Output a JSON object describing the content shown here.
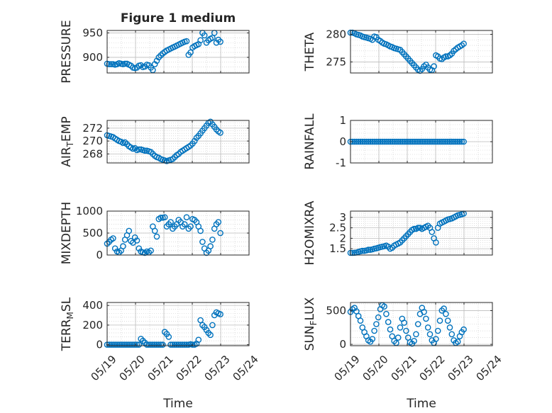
{
  "figure": {
    "title": "Figure 1 medium"
  },
  "chart_data": [
    {
      "type": "scatter",
      "ylabel": "PRESSURE",
      "ylim": [
        868,
        955
      ],
      "yticks": [
        900,
        950
      ],
      "ytick_labels": [
        "900",
        "950"
      ],
      "xlim": [
        0,
        5
      ],
      "xticks": [
        0,
        1,
        2,
        3,
        4,
        5
      ],
      "grid": true,
      "marker_color": "#0072BD",
      "x": [
        0.0,
        0.07,
        0.14,
        0.21,
        0.28,
        0.35,
        0.42,
        0.49,
        0.56,
        0.63,
        0.7,
        0.77,
        0.84,
        0.91,
        0.98,
        1.05,
        1.12,
        1.19,
        1.26,
        1.33,
        1.4,
        1.47,
        1.54,
        1.61,
        1.68,
        1.75,
        1.82,
        1.89,
        1.96,
        2.03,
        2.1,
        2.17,
        2.24,
        2.31,
        2.38,
        2.45,
        2.52,
        2.59,
        2.66,
        2.73,
        2.8,
        2.87,
        2.94,
        3.01,
        3.08,
        3.15,
        3.22,
        3.29,
        3.36,
        3.43,
        3.5,
        3.57,
        3.64,
        3.71,
        3.78,
        3.85,
        3.92,
        3.99
      ],
      "y": [
        887,
        886,
        886,
        886,
        885,
        886,
        888,
        887,
        886,
        887,
        887,
        885,
        883,
        879,
        878,
        879,
        883,
        884,
        880,
        881,
        885,
        884,
        879,
        874,
        886,
        893,
        900,
        904,
        908,
        911,
        914,
        916,
        918,
        920,
        922,
        924,
        926,
        928,
        930,
        932,
        933,
        905,
        910,
        920,
        923,
        925,
        927,
        935,
        950,
        945,
        930,
        935,
        938,
        940,
        950,
        930,
        936,
        932
      ]
    },
    {
      "type": "scatter",
      "ylabel": "THETA",
      "ylim": [
        273,
        280.7
      ],
      "yticks": [
        275,
        280
      ],
      "ytick_labels": [
        "275",
        "280"
      ],
      "xlim": [
        0,
        5
      ],
      "xticks": [
        0,
        1,
        2,
        3,
        4,
        5
      ],
      "grid": true,
      "marker_color": "#0072BD",
      "x": [
        0.0,
        0.07,
        0.14,
        0.21,
        0.28,
        0.35,
        0.42,
        0.49,
        0.56,
        0.63,
        0.7,
        0.77,
        0.84,
        0.91,
        0.98,
        1.05,
        1.12,
        1.19,
        1.26,
        1.33,
        1.4,
        1.47,
        1.54,
        1.61,
        1.68,
        1.75,
        1.82,
        1.89,
        1.96,
        2.03,
        2.1,
        2.17,
        2.24,
        2.31,
        2.38,
        2.45,
        2.52,
        2.59,
        2.66,
        2.73,
        2.8,
        2.87,
        2.94,
        3.01,
        3.08,
        3.15,
        3.22,
        3.29,
        3.36,
        3.43,
        3.5,
        3.57,
        3.64,
        3.71,
        3.78,
        3.85,
        3.92,
        3.99
      ],
      "y": [
        280.3,
        280.3,
        280.2,
        280.0,
        279.9,
        279.8,
        279.6,
        279.5,
        279.4,
        279.3,
        279.2,
        279.0,
        279.6,
        279.5,
        279.0,
        278.8,
        278.5,
        278.3,
        278.2,
        278.0,
        277.8,
        277.7,
        277.5,
        277.4,
        277.3,
        277.2,
        276.8,
        276.4,
        276.0,
        275.6,
        275.2,
        274.8,
        274.4,
        274.0,
        273.6,
        273.4,
        273.7,
        274.2,
        274.5,
        274.0,
        273.6,
        273.5,
        274.2,
        276.2,
        276.0,
        275.6,
        275.5,
        275.8,
        276.0,
        276.0,
        276.2,
        276.5,
        277.0,
        277.3,
        277.6,
        277.8,
        278.0,
        278.3
      ]
    },
    {
      "type": "scatter",
      "ylabel": "AIR_TEMP",
      "ylim": [
        266.6,
        273.2
      ],
      "yticks": [
        268,
        270,
        272
      ],
      "ytick_labels": [
        "268",
        "270",
        "272"
      ],
      "xlim": [
        0,
        5
      ],
      "xticks": [
        0,
        1,
        2,
        3,
        4,
        5
      ],
      "grid": true,
      "marker_color": "#0072BD",
      "x": [
        0.0,
        0.07,
        0.14,
        0.21,
        0.28,
        0.35,
        0.42,
        0.49,
        0.56,
        0.63,
        0.7,
        0.77,
        0.84,
        0.91,
        0.98,
        1.05,
        1.12,
        1.19,
        1.26,
        1.33,
        1.4,
        1.47,
        1.54,
        1.61,
        1.68,
        1.75,
        1.82,
        1.89,
        1.96,
        2.03,
        2.1,
        2.17,
        2.24,
        2.31,
        2.38,
        2.45,
        2.52,
        2.59,
        2.66,
        2.73,
        2.8,
        2.87,
        2.94,
        3.01,
        3.08,
        3.15,
        3.22,
        3.29,
        3.36,
        3.43,
        3.5,
        3.57,
        3.64,
        3.71,
        3.78,
        3.85,
        3.92,
        3.99
      ],
      "y": [
        270.9,
        270.8,
        270.7,
        270.6,
        270.4,
        270.2,
        270.0,
        269.9,
        269.7,
        269.8,
        269.5,
        269.2,
        269.0,
        268.8,
        268.9,
        268.6,
        268.7,
        268.7,
        268.6,
        268.5,
        268.5,
        268.4,
        268.3,
        268.0,
        267.7,
        267.5,
        267.4,
        267.2,
        267.1,
        267.0,
        266.9,
        267.0,
        267.1,
        267.2,
        267.5,
        267.8,
        268.0,
        268.3,
        268.5,
        268.7,
        268.9,
        269.1,
        269.3,
        269.6,
        270.0,
        270.5,
        270.8,
        271.2,
        271.6,
        272.0,
        272.4,
        272.8,
        273.0,
        272.6,
        272.2,
        271.8,
        271.5,
        271.3
      ]
    },
    {
      "type": "scatter",
      "ylabel": "RAINFALL",
      "ylim": [
        -1,
        1
      ],
      "yticks": [
        -1,
        0,
        1
      ],
      "ytick_labels": [
        "-1",
        "0",
        "1"
      ],
      "xlim": [
        0,
        5
      ],
      "xticks": [
        0,
        1,
        2,
        3,
        4,
        5
      ],
      "grid": true,
      "marker_color": "#0072BD",
      "x": [
        0.0,
        0.07,
        0.14,
        0.21,
        0.28,
        0.35,
        0.42,
        0.49,
        0.56,
        0.63,
        0.7,
        0.77,
        0.84,
        0.91,
        0.98,
        1.05,
        1.12,
        1.19,
        1.26,
        1.33,
        1.4,
        1.47,
        1.54,
        1.61,
        1.68,
        1.75,
        1.82,
        1.89,
        1.96,
        2.03,
        2.1,
        2.17,
        2.24,
        2.31,
        2.38,
        2.45,
        2.52,
        2.59,
        2.66,
        2.73,
        2.8,
        2.87,
        2.94,
        3.01,
        3.08,
        3.15,
        3.22,
        3.29,
        3.36,
        3.43,
        3.5,
        3.57,
        3.64,
        3.71,
        3.78,
        3.85,
        3.92,
        3.99
      ],
      "y": [
        0,
        0,
        0,
        0,
        0,
        0,
        0,
        0,
        0,
        0,
        0,
        0,
        0,
        0,
        0,
        0,
        0,
        0,
        0,
        0,
        0,
        0,
        0,
        0,
        0,
        0,
        0,
        0,
        0,
        0,
        0,
        0,
        0,
        0,
        0,
        0,
        0,
        0,
        0,
        0,
        0,
        0,
        0,
        0,
        0,
        0,
        0,
        0,
        0,
        0,
        0,
        0,
        0,
        0,
        0,
        0,
        0,
        0
      ]
    },
    {
      "type": "scatter",
      "ylabel": "MIXDEPTH",
      "ylim": [
        0,
        1000
      ],
      "yticks": [
        0,
        500,
        1000
      ],
      "ytick_labels": [
        "0",
        "500",
        "1000"
      ],
      "xlim": [
        0,
        5
      ],
      "xticks": [
        0,
        1,
        2,
        3,
        4,
        5
      ],
      "grid": true,
      "marker_color": "#0072BD",
      "x": [
        0.0,
        0.07,
        0.14,
        0.21,
        0.28,
        0.35,
        0.42,
        0.49,
        0.56,
        0.63,
        0.7,
        0.77,
        0.84,
        0.91,
        0.98,
        1.05,
        1.12,
        1.19,
        1.26,
        1.33,
        1.4,
        1.47,
        1.54,
        1.61,
        1.68,
        1.75,
        1.82,
        1.89,
        1.96,
        2.03,
        2.1,
        2.17,
        2.24,
        2.31,
        2.38,
        2.45,
        2.52,
        2.59,
        2.66,
        2.73,
        2.8,
        2.87,
        2.94,
        3.01,
        3.08,
        3.15,
        3.22,
        3.29,
        3.36,
        3.43,
        3.5,
        3.57,
        3.64,
        3.71,
        3.78,
        3.85,
        3.92,
        3.99
      ],
      "y": [
        260,
        300,
        350,
        380,
        150,
        80,
        60,
        100,
        200,
        350,
        450,
        550,
        320,
        280,
        400,
        330,
        150,
        80,
        60,
        50,
        80,
        60,
        100,
        650,
        550,
        420,
        820,
        850,
        850,
        860,
        650,
        700,
        750,
        600,
        650,
        700,
        800,
        750,
        650,
        700,
        860,
        600,
        650,
        820,
        800,
        750,
        650,
        550,
        300,
        150,
        50,
        100,
        200,
        350,
        600,
        700,
        750,
        500
      ]
    },
    {
      "type": "scatter",
      "ylabel": "H2OMIXRA",
      "ylim": [
        1.2,
        3.3
      ],
      "yticks": [
        1.5,
        2,
        2.5,
        3
      ],
      "ytick_labels": [
        "1.5",
        "2",
        "2.5",
        "3"
      ],
      "xlim": [
        0,
        5
      ],
      "xticks": [
        0,
        1,
        2,
        3,
        4,
        5
      ],
      "grid": true,
      "marker_color": "#0072BD",
      "x": [
        0.0,
        0.07,
        0.14,
        0.21,
        0.28,
        0.35,
        0.42,
        0.49,
        0.56,
        0.63,
        0.7,
        0.77,
        0.84,
        0.91,
        0.98,
        1.05,
        1.12,
        1.19,
        1.26,
        1.33,
        1.4,
        1.47,
        1.54,
        1.61,
        1.68,
        1.75,
        1.82,
        1.89,
        1.96,
        2.03,
        2.1,
        2.17,
        2.24,
        2.31,
        2.38,
        2.45,
        2.52,
        2.59,
        2.66,
        2.73,
        2.8,
        2.87,
        2.94,
        3.01,
        3.08,
        3.15,
        3.22,
        3.29,
        3.36,
        3.43,
        3.5,
        3.57,
        3.64,
        3.71,
        3.78,
        3.85,
        3.92,
        3.99
      ],
      "y": [
        1.3,
        1.3,
        1.31,
        1.32,
        1.35,
        1.38,
        1.4,
        1.4,
        1.42,
        1.45,
        1.45,
        1.47,
        1.5,
        1.52,
        1.55,
        1.58,
        1.6,
        1.62,
        1.65,
        1.6,
        1.5,
        1.55,
        1.65,
        1.7,
        1.75,
        1.8,
        1.9,
        2.0,
        2.1,
        2.2,
        2.3,
        2.4,
        2.45,
        2.45,
        2.5,
        2.5,
        2.45,
        2.5,
        2.55,
        2.6,
        2.5,
        2.3,
        2.0,
        1.8,
        2.5,
        2.7,
        2.75,
        2.8,
        2.85,
        2.9,
        2.92,
        2.95,
        3.0,
        3.05,
        3.1,
        3.12,
        3.15,
        3.18
      ]
    },
    {
      "type": "scatter",
      "ylabel": "TERR_MSL",
      "ylim": [
        -10,
        430
      ],
      "yticks": [
        0,
        200,
        400
      ],
      "ytick_labels": [
        "0",
        "200",
        "400"
      ],
      "xlim": [
        0,
        5
      ],
      "xticks": [
        0,
        1,
        2,
        3,
        4,
        5
      ],
      "grid": true,
      "marker_color": "#0072BD",
      "x": [
        0.0,
        0.07,
        0.14,
        0.21,
        0.28,
        0.35,
        0.42,
        0.49,
        0.56,
        0.63,
        0.7,
        0.77,
        0.84,
        0.91,
        0.98,
        1.05,
        1.12,
        1.19,
        1.26,
        1.33,
        1.4,
        1.47,
        1.54,
        1.61,
        1.68,
        1.75,
        1.82,
        1.89,
        1.96,
        2.03,
        2.1,
        2.17,
        2.24,
        2.31,
        2.38,
        2.45,
        2.52,
        2.59,
        2.66,
        2.73,
        2.8,
        2.87,
        2.94,
        3.01,
        3.08,
        3.15,
        3.22,
        3.29,
        3.36,
        3.43,
        3.5,
        3.57,
        3.64,
        3.71,
        3.78,
        3.85,
        3.92,
        3.99
      ],
      "y": [
        0,
        0,
        0,
        0,
        0,
        0,
        0,
        0,
        0,
        0,
        0,
        0,
        0,
        0,
        0,
        0,
        0,
        60,
        40,
        20,
        0,
        0,
        0,
        0,
        0,
        0,
        0,
        0,
        0,
        130,
        110,
        80,
        0,
        0,
        0,
        0,
        0,
        0,
        0,
        0,
        0,
        0,
        5,
        0,
        0,
        10,
        50,
        250,
        200,
        180,
        150,
        120,
        100,
        200,
        300,
        330,
        320,
        310
      ]
    },
    {
      "type": "scatter",
      "ylabel": "SUN_FLUX",
      "ylim": [
        -20,
        620
      ],
      "yticks": [
        0,
        500
      ],
      "ytick_labels": [
        "0",
        "500"
      ],
      "xlim": [
        0,
        5
      ],
      "xticks": [
        0,
        1,
        2,
        3,
        4,
        5
      ],
      "grid": true,
      "marker_color": "#0072BD",
      "x": [
        0.0,
        0.07,
        0.14,
        0.21,
        0.28,
        0.35,
        0.42,
        0.49,
        0.56,
        0.63,
        0.7,
        0.77,
        0.84,
        0.91,
        0.98,
        1.05,
        1.12,
        1.19,
        1.26,
        1.33,
        1.4,
        1.47,
        1.54,
        1.61,
        1.68,
        1.75,
        1.82,
        1.89,
        1.96,
        2.03,
        2.1,
        2.17,
        2.24,
        2.31,
        2.38,
        2.45,
        2.52,
        2.59,
        2.66,
        2.73,
        2.8,
        2.87,
        2.94,
        3.01,
        3.08,
        3.15,
        3.22,
        3.29,
        3.36,
        3.43,
        3.5,
        3.57,
        3.64,
        3.71,
        3.78,
        3.85,
        3.92,
        3.99
      ],
      "y": [
        480,
        520,
        540,
        490,
        420,
        350,
        250,
        180,
        120,
        60,
        40,
        80,
        200,
        300,
        400,
        520,
        580,
        560,
        450,
        330,
        220,
        120,
        50,
        20,
        100,
        250,
        380,
        320,
        200,
        100,
        30,
        10,
        50,
        150,
        300,
        450,
        540,
        480,
        380,
        250,
        150,
        60,
        20,
        80,
        200,
        350,
        500,
        530,
        450,
        350,
        250,
        150,
        60,
        20,
        40,
        120,
        180,
        220
      ]
    }
  ],
  "xtick_labels": [
    "05/19",
    "05/20",
    "05/21",
    "05/22",
    "05/23",
    "05/24"
  ],
  "xlabel": "Time"
}
